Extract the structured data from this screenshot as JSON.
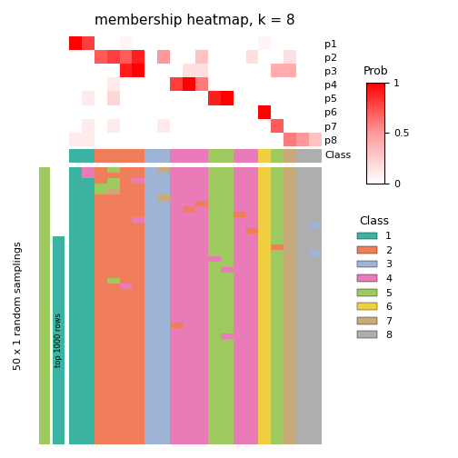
{
  "chart_data": {
    "type": "heatmap",
    "title": "membership heatmap, k = 8",
    "row_labels": [
      "p1",
      "p2",
      "p3",
      "p4",
      "p5",
      "p6",
      "p7",
      "p8"
    ],
    "cells": [
      [
        1.0,
        0.8,
        0.0,
        0.0,
        0.05,
        0.0,
        0.0,
        0.0,
        0.0,
        0.0,
        0.0,
        0.0,
        0.0,
        0.0,
        0.0,
        0.05,
        0.0,
        0.0,
        0.0,
        0.0
      ],
      [
        0.0,
        0.0,
        0.7,
        0.8,
        0.7,
        0.9,
        0.0,
        0.5,
        0.0,
        0.0,
        0.3,
        0.0,
        0.0,
        0.0,
        0.15,
        0.0,
        0.0,
        0.15,
        0.0,
        0.0
      ],
      [
        0.0,
        0.0,
        0.0,
        0.0,
        0.9,
        1.0,
        0.0,
        0.0,
        0.0,
        0.15,
        0.15,
        0.0,
        0.0,
        0.0,
        0.0,
        0.0,
        0.4,
        0.4,
        0.0,
        0.0
      ],
      [
        0.0,
        0.0,
        0.0,
        0.1,
        0.0,
        0.0,
        0.0,
        0.0,
        0.8,
        1.0,
        0.6,
        0.0,
        0.0,
        0.0,
        0.0,
        0.0,
        0.0,
        0.0,
        0.0,
        0.0
      ],
      [
        0.0,
        0.1,
        0.0,
        0.2,
        0.0,
        0.0,
        0.0,
        0.0,
        0.0,
        0.0,
        0.0,
        0.9,
        1.0,
        0.0,
        0.0,
        0.0,
        0.0,
        0.0,
        0.0,
        0.0
      ],
      [
        0.0,
        0.0,
        0.0,
        0.0,
        0.0,
        0.0,
        0.0,
        0.0,
        0.0,
        0.0,
        0.0,
        0.0,
        0.0,
        0.0,
        0.0,
        1.0,
        0.0,
        0.0,
        0.0,
        0.0
      ],
      [
        0.0,
        0.1,
        0.0,
        0.1,
        0.0,
        0.0,
        0.0,
        0.1,
        0.0,
        0.0,
        0.0,
        0.0,
        0.0,
        0.0,
        0.0,
        0.0,
        0.7,
        0.0,
        0.0,
        0.0
      ],
      [
        0.1,
        0.1,
        0.0,
        0.0,
        0.0,
        0.0,
        0.0,
        0.0,
        0.0,
        0.0,
        0.0,
        0.0,
        0.0,
        0.0,
        0.0,
        0.0,
        0.0,
        0.6,
        0.5,
        0.3
      ]
    ],
    "colorbar": {
      "label": "Prob",
      "range": [
        0,
        1
      ],
      "ticks": [
        0,
        0.5,
        1
      ],
      "colors": [
        "#FFFFFF",
        "#FF9999",
        "#FF0000"
      ]
    },
    "class_bar": {
      "label": "Class",
      "values": [
        1,
        1,
        2,
        2,
        2,
        2,
        3,
        3,
        4,
        4,
        4,
        5,
        5,
        4,
        4,
        6,
        5,
        7,
        8,
        8
      ]
    },
    "membership": {
      "label": "50 x 1 random samplings",
      "cells": [
        [
          1,
          4,
          2,
          5,
          2,
          2,
          3,
          7,
          4,
          4,
          4,
          5,
          5,
          4,
          4,
          6,
          5,
          7,
          8,
          8
        ],
        [
          1,
          4,
          2,
          2,
          2,
          2,
          3,
          3,
          4,
          4,
          4,
          5,
          5,
          4,
          4,
          6,
          5,
          7,
          8,
          8
        ],
        [
          1,
          1,
          2,
          5,
          2,
          4,
          3,
          3,
          4,
          4,
          4,
          5,
          5,
          4,
          4,
          6,
          5,
          7,
          8,
          8
        ],
        [
          1,
          1,
          5,
          5,
          2,
          2,
          3,
          3,
          4,
          4,
          4,
          5,
          5,
          4,
          4,
          6,
          5,
          7,
          8,
          8
        ],
        [
          1,
          1,
          5,
          7,
          2,
          2,
          3,
          3,
          4,
          4,
          4,
          5,
          5,
          4,
          4,
          6,
          5,
          7,
          8,
          8
        ],
        [
          1,
          1,
          2,
          2,
          2,
          2,
          3,
          7,
          4,
          4,
          4,
          5,
          5,
          4,
          4,
          6,
          5,
          7,
          8,
          8
        ],
        [
          1,
          1,
          2,
          2,
          2,
          2,
          3,
          3,
          4,
          4,
          2,
          5,
          5,
          4,
          4,
          6,
          5,
          7,
          8,
          8
        ],
        [
          1,
          1,
          2,
          2,
          2,
          2,
          3,
          3,
          4,
          2,
          4,
          5,
          5,
          4,
          4,
          6,
          5,
          7,
          8,
          8
        ],
        [
          1,
          1,
          2,
          2,
          2,
          2,
          3,
          3,
          4,
          4,
          4,
          5,
          5,
          2,
          4,
          6,
          5,
          7,
          8,
          8
        ],
        [
          1,
          1,
          2,
          2,
          2,
          4,
          3,
          3,
          4,
          4,
          4,
          5,
          5,
          4,
          4,
          6,
          5,
          7,
          8,
          8
        ],
        [
          1,
          1,
          2,
          2,
          2,
          2,
          3,
          3,
          4,
          4,
          4,
          5,
          5,
          4,
          4,
          6,
          5,
          7,
          8,
          3
        ],
        [
          1,
          1,
          2,
          2,
          2,
          2,
          3,
          3,
          4,
          4,
          4,
          5,
          5,
          4,
          2,
          6,
          5,
          7,
          8,
          8
        ],
        [
          1,
          1,
          2,
          2,
          2,
          2,
          3,
          3,
          4,
          4,
          4,
          5,
          5,
          4,
          4,
          6,
          5,
          7,
          8,
          8
        ],
        [
          1,
          1,
          2,
          2,
          2,
          2,
          3,
          3,
          4,
          4,
          4,
          5,
          5,
          4,
          4,
          6,
          5,
          7,
          8,
          8
        ],
        [
          1,
          1,
          2,
          2,
          2,
          2,
          3,
          3,
          4,
          4,
          4,
          5,
          5,
          4,
          4,
          6,
          2,
          7,
          8,
          8
        ],
        [
          1,
          1,
          2,
          2,
          2,
          2,
          3,
          3,
          4,
          4,
          4,
          5,
          5,
          4,
          4,
          6,
          5,
          7,
          8,
          3
        ],
        [
          1,
          1,
          2,
          2,
          2,
          2,
          3,
          3,
          4,
          4,
          4,
          4,
          5,
          4,
          4,
          6,
          5,
          7,
          8,
          8
        ],
        [
          1,
          1,
          2,
          2,
          2,
          2,
          3,
          3,
          4,
          4,
          4,
          5,
          5,
          4,
          4,
          6,
          5,
          7,
          8,
          8
        ],
        [
          1,
          1,
          2,
          2,
          2,
          2,
          3,
          3,
          4,
          4,
          4,
          5,
          4,
          4,
          4,
          6,
          5,
          7,
          8,
          8
        ],
        [
          1,
          1,
          2,
          2,
          2,
          2,
          3,
          3,
          4,
          4,
          4,
          5,
          5,
          4,
          4,
          6,
          5,
          7,
          8,
          8
        ],
        [
          1,
          1,
          2,
          5,
          2,
          2,
          3,
          3,
          4,
          4,
          4,
          5,
          5,
          4,
          4,
          6,
          5,
          7,
          8,
          8
        ],
        [
          1,
          1,
          2,
          2,
          4,
          2,
          3,
          3,
          4,
          4,
          4,
          5,
          5,
          4,
          4,
          6,
          5,
          7,
          8,
          8
        ],
        [
          1,
          1,
          2,
          2,
          2,
          2,
          3,
          3,
          4,
          4,
          4,
          5,
          5,
          4,
          4,
          6,
          5,
          7,
          8,
          8
        ],
        [
          1,
          1,
          2,
          2,
          2,
          2,
          3,
          3,
          4,
          4,
          4,
          5,
          5,
          4,
          4,
          6,
          5,
          7,
          8,
          8
        ],
        [
          1,
          1,
          2,
          2,
          2,
          2,
          3,
          3,
          4,
          4,
          4,
          5,
          5,
          4,
          4,
          6,
          5,
          7,
          8,
          8
        ],
        [
          1,
          1,
          2,
          2,
          2,
          2,
          3,
          3,
          4,
          4,
          4,
          5,
          5,
          4,
          4,
          6,
          5,
          7,
          8,
          8
        ],
        [
          1,
          1,
          2,
          2,
          2,
          2,
          3,
          3,
          4,
          4,
          4,
          5,
          5,
          4,
          4,
          6,
          5,
          7,
          8,
          8
        ],
        [
          1,
          1,
          2,
          2,
          2,
          2,
          3,
          3,
          4,
          4,
          4,
          5,
          5,
          4,
          4,
          6,
          5,
          7,
          8,
          8
        ],
        [
          1,
          1,
          2,
          2,
          2,
          2,
          3,
          3,
          2,
          4,
          4,
          5,
          5,
          4,
          4,
          6,
          5,
          7,
          8,
          8
        ],
        [
          1,
          1,
          2,
          2,
          2,
          2,
          3,
          3,
          4,
          4,
          4,
          5,
          5,
          4,
          4,
          6,
          5,
          7,
          8,
          8
        ],
        [
          1,
          1,
          2,
          2,
          2,
          2,
          3,
          3,
          4,
          4,
          4,
          5,
          4,
          4,
          4,
          6,
          5,
          7,
          8,
          8
        ],
        [
          1,
          1,
          2,
          2,
          2,
          2,
          3,
          3,
          4,
          4,
          4,
          5,
          5,
          4,
          4,
          6,
          5,
          7,
          8,
          8
        ],
        [
          1,
          1,
          2,
          2,
          2,
          2,
          3,
          3,
          4,
          4,
          4,
          5,
          5,
          4,
          4,
          6,
          5,
          7,
          8,
          8
        ],
        [
          1,
          1,
          2,
          2,
          2,
          2,
          3,
          3,
          4,
          4,
          4,
          5,
          5,
          4,
          4,
          6,
          5,
          7,
          8,
          8
        ],
        [
          1,
          1,
          2,
          2,
          2,
          2,
          3,
          3,
          4,
          4,
          4,
          5,
          5,
          4,
          4,
          6,
          5,
          7,
          8,
          8
        ],
        [
          1,
          1,
          2,
          2,
          2,
          2,
          3,
          3,
          4,
          4,
          4,
          5,
          5,
          4,
          4,
          6,
          5,
          7,
          8,
          8
        ],
        [
          1,
          1,
          2,
          2,
          2,
          2,
          3,
          3,
          4,
          4,
          4,
          5,
          5,
          4,
          4,
          6,
          5,
          7,
          8,
          8
        ],
        [
          1,
          1,
          2,
          2,
          2,
          2,
          3,
          3,
          4,
          4,
          4,
          5,
          5,
          4,
          4,
          6,
          5,
          7,
          8,
          8
        ],
        [
          1,
          1,
          2,
          2,
          2,
          2,
          3,
          3,
          4,
          4,
          4,
          5,
          5,
          4,
          4,
          6,
          5,
          7,
          8,
          8
        ],
        [
          1,
          1,
          2,
          2,
          2,
          2,
          3,
          3,
          4,
          4,
          4,
          5,
          5,
          4,
          4,
          6,
          5,
          7,
          8,
          8
        ],
        [
          1,
          1,
          2,
          2,
          2,
          2,
          3,
          3,
          4,
          4,
          4,
          5,
          5,
          4,
          4,
          6,
          5,
          7,
          8,
          8
        ],
        [
          1,
          1,
          2,
          2,
          2,
          2,
          3,
          3,
          4,
          4,
          4,
          5,
          5,
          4,
          4,
          6,
          5,
          7,
          8,
          8
        ],
        [
          1,
          1,
          2,
          2,
          2,
          2,
          3,
          3,
          4,
          4,
          4,
          5,
          5,
          4,
          4,
          6,
          5,
          7,
          8,
          8
        ],
        [
          1,
          1,
          2,
          2,
          2,
          2,
          3,
          3,
          4,
          4,
          4,
          5,
          5,
          4,
          4,
          6,
          5,
          7,
          8,
          8
        ],
        [
          1,
          1,
          2,
          2,
          2,
          2,
          3,
          3,
          4,
          4,
          4,
          5,
          5,
          4,
          4,
          6,
          5,
          7,
          8,
          8
        ],
        [
          1,
          1,
          2,
          2,
          2,
          2,
          3,
          3,
          4,
          4,
          4,
          5,
          5,
          4,
          4,
          6,
          5,
          7,
          8,
          8
        ],
        [
          1,
          1,
          2,
          2,
          2,
          2,
          3,
          3,
          4,
          4,
          4,
          5,
          5,
          4,
          4,
          6,
          5,
          7,
          8,
          8
        ],
        [
          1,
          1,
          2,
          2,
          2,
          2,
          3,
          3,
          4,
          4,
          4,
          5,
          5,
          4,
          4,
          6,
          5,
          7,
          8,
          8
        ],
        [
          1,
          1,
          2,
          2,
          2,
          2,
          3,
          3,
          4,
          4,
          4,
          5,
          5,
          4,
          4,
          6,
          5,
          7,
          8,
          8
        ],
        [
          1,
          1,
          2,
          2,
          2,
          2,
          3,
          3,
          4,
          4,
          4,
          5,
          5,
          4,
          4,
          6,
          5,
          7,
          8,
          8
        ]
      ]
    },
    "side_bars": {
      "label": "top 1000 rows",
      "colors": [
        "#9EC95E",
        "#3CB2A0"
      ]
    },
    "legend_title": "Class",
    "categories": [
      "1",
      "2",
      "3",
      "4",
      "5",
      "6",
      "7",
      "8"
    ],
    "colors": [
      "#3CB2A0",
      "#F07E5A",
      "#9EB4D7",
      "#E87BB8",
      "#9EC95E",
      "#F0D040",
      "#C8A97A",
      "#AEAEAE"
    ]
  }
}
